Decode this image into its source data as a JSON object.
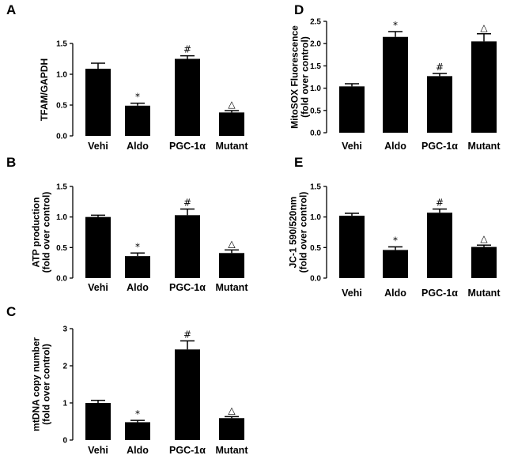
{
  "chart_data": [
    {
      "id": "A",
      "type": "bar",
      "ylabel": [
        "TFAM/GAPDH"
      ],
      "categories": [
        "Vehi",
        "Aldo",
        "PGC-1α",
        "Mutant"
      ],
      "values": [
        1.09,
        0.49,
        1.25,
        0.38
      ],
      "errors": [
        0.09,
        0.04,
        0.05,
        0.03
      ],
      "marks": [
        "",
        "*",
        "#",
        "△"
      ],
      "ylim": [
        0,
        1.5
      ],
      "yticks": [
        "0.0",
        "0.5",
        "1.0",
        "1.5"
      ],
      "tick_values": [
        0,
        0.5,
        1.0,
        1.5
      ],
      "grid": false,
      "bar_color": "#000000"
    },
    {
      "id": "B",
      "type": "bar",
      "ylabel": [
        "ATP production",
        "(fold over control)"
      ],
      "categories": [
        "Vehi",
        "Aldo",
        "PGC-1α",
        "Mutant"
      ],
      "values": [
        1.0,
        0.36,
        1.03,
        0.41
      ],
      "errors": [
        0.03,
        0.05,
        0.1,
        0.05
      ],
      "marks": [
        "",
        "*",
        "#",
        "△"
      ],
      "ylim": [
        0,
        1.5
      ],
      "yticks": [
        "0.0",
        "0.5",
        "1.0",
        "1.5"
      ],
      "tick_values": [
        0,
        0.5,
        1.0,
        1.5
      ],
      "grid": false,
      "bar_color": "#000000"
    },
    {
      "id": "C",
      "type": "bar",
      "ylabel": [
        "mtDNA copy number",
        "(fold over control)"
      ],
      "categories": [
        "Vehi",
        "Aldo",
        "PGC-1α",
        "Mutant"
      ],
      "values": [
        1.0,
        0.48,
        2.44,
        0.59
      ],
      "errors": [
        0.07,
        0.05,
        0.23,
        0.04
      ],
      "marks": [
        "",
        "*",
        "#",
        "△"
      ],
      "ylim": [
        0,
        3
      ],
      "yticks": [
        "0",
        "1",
        "2",
        "3"
      ],
      "tick_values": [
        0,
        1,
        2,
        3
      ],
      "grid": false,
      "bar_color": "#000000"
    },
    {
      "id": "D",
      "type": "bar",
      "ylabel": [
        "MitoSOX Fluorescence",
        "(fold over control)"
      ],
      "categories": [
        "Vehi",
        "Aldo",
        "PGC-1α",
        "Mutant"
      ],
      "values": [
        1.04,
        2.15,
        1.27,
        2.05
      ],
      "errors": [
        0.06,
        0.12,
        0.06,
        0.17
      ],
      "marks": [
        "",
        "*",
        "#",
        "△"
      ],
      "ylim": [
        0,
        2.5
      ],
      "yticks": [
        "0.0",
        "0.5",
        "1.0",
        "1.5",
        "2.0",
        "2.5"
      ],
      "tick_values": [
        0,
        0.5,
        1.0,
        1.5,
        2.0,
        2.5
      ],
      "grid": false,
      "bar_color": "#000000"
    },
    {
      "id": "E",
      "type": "bar",
      "ylabel": [
        "JC-1 590/520nm",
        "(fold over control)"
      ],
      "categories": [
        "Vehi",
        "Aldo",
        "PGC-1α",
        "Mutant"
      ],
      "values": [
        1.02,
        0.46,
        1.07,
        0.51
      ],
      "errors": [
        0.04,
        0.05,
        0.06,
        0.03
      ],
      "marks": [
        "",
        "*",
        "#",
        "△"
      ],
      "ylim": [
        0,
        1.5
      ],
      "yticks": [
        "0.0",
        "0.5",
        "1.0",
        "1.5"
      ],
      "tick_values": [
        0,
        0.5,
        1.0,
        1.5
      ],
      "grid": false,
      "bar_color": "#000000"
    }
  ]
}
